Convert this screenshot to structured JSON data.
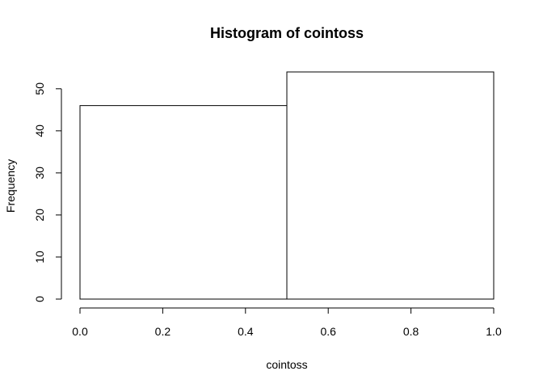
{
  "chart_data": {
    "type": "bar",
    "title": "Histogram of cointoss",
    "xlabel": "cointoss",
    "ylabel": "Frequency",
    "bins": [
      {
        "x0": 0.0,
        "x1": 0.5,
        "count": 46
      },
      {
        "x0": 0.5,
        "x1": 1.0,
        "count": 54
      }
    ],
    "xlim": [
      0,
      1
    ],
    "ylim": [
      0,
      54
    ],
    "x_ticks": [
      "0.0",
      "0.2",
      "0.4",
      "0.6",
      "0.8",
      "1.0"
    ],
    "y_ticks": [
      "0",
      "10",
      "20",
      "30",
      "40",
      "50"
    ],
    "grid": false,
    "bar_fill": "#ffffff",
    "bar_stroke": "#000000"
  }
}
